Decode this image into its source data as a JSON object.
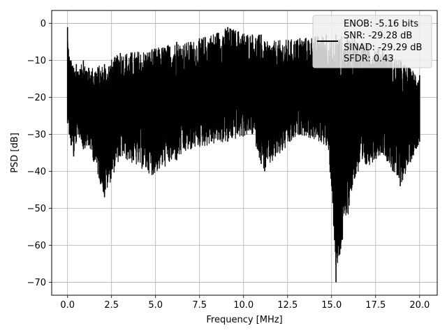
{
  "chart_data": {
    "type": "line",
    "title": "",
    "xlabel": "Frequency [MHz]",
    "ylabel": "PSD [dB]",
    "xlim": [
      -0.9,
      21.0
    ],
    "ylim": [
      -73.5,
      3.5
    ],
    "xticks": [
      0.0,
      2.5,
      5.0,
      7.5,
      10.0,
      12.5,
      15.0,
      17.5,
      20.0
    ],
    "xtick_labels": [
      "0.0",
      "2.5",
      "5.0",
      "7.5",
      "10.0",
      "12.5",
      "15.0",
      "17.5",
      "20.0"
    ],
    "yticks": [
      0,
      -10,
      -20,
      -30,
      -40,
      -50,
      -60,
      -70
    ],
    "ytick_labels": [
      "0",
      "−10",
      "−20",
      "−30",
      "−40",
      "−50",
      "−60",
      "−70"
    ],
    "grid": true,
    "legend_placement": "upper-right",
    "legend_lines": [
      "ENOB: -5.16 bits",
      "SNR: -29.28 dB",
      "SINAD: -29.29 dB",
      "SFDR: 0.43"
    ],
    "series": [
      {
        "color": "#000000",
        "x": [
          0.0,
          0.05,
          0.1,
          0.2,
          0.35,
          0.5,
          0.6,
          0.9,
          1.2,
          2.1,
          3.0,
          4.8,
          6.2,
          7.0,
          9.1,
          10.5,
          11.0,
          11.2,
          13.2,
          14.7,
          15.0,
          15.25,
          16.3,
          17.9,
          18.9,
          20.0
        ],
        "upper": [
          -1,
          -7,
          -9,
          -10,
          -12,
          -11,
          -13,
          -10,
          -12,
          -11,
          -8,
          -7,
          -5,
          -5,
          -1,
          -3,
          -3,
          -5,
          -4,
          -3,
          -5,
          -3,
          -4,
          -7,
          -10,
          -14
        ],
        "lower": [
          -27,
          -25,
          -30,
          -33,
          -36,
          -32,
          -30,
          -34,
          -33,
          -47,
          -36,
          -41,
          -37,
          -34,
          -32,
          -30,
          -38,
          -40,
          -30,
          -33,
          -44,
          -70,
          -42,
          -35,
          -44,
          -32
        ]
      }
    ]
  }
}
